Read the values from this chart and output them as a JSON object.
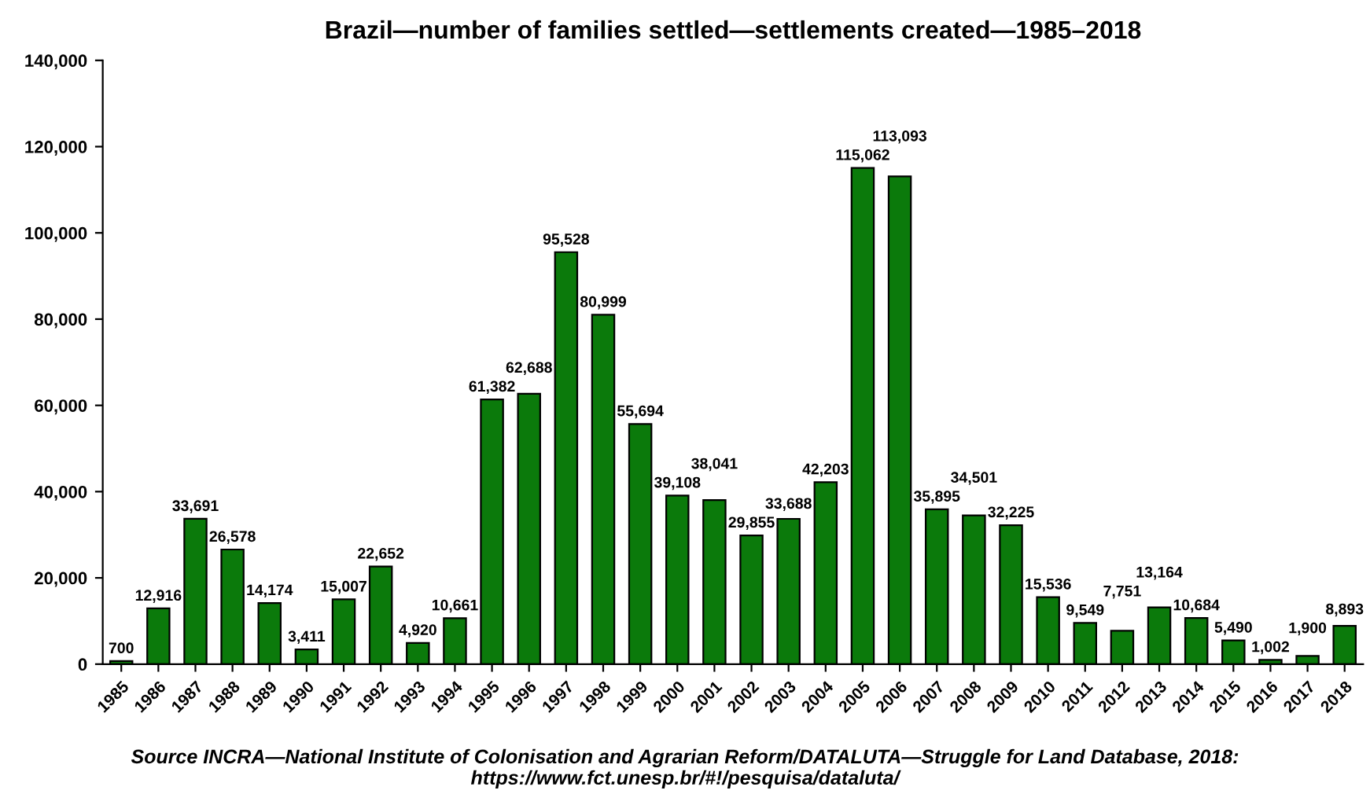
{
  "chart_data": {
    "type": "bar",
    "title": "Brazil—number of families settled—settlements created—1985–2018",
    "categories": [
      "1985",
      "1986",
      "1987",
      "1988",
      "1989",
      "1990",
      "1991",
      "1992",
      "1993",
      "1994",
      "1995",
      "1996",
      "1997",
      "1998",
      "1999",
      "2000",
      "2001",
      "2002",
      "2003",
      "2004",
      "2005",
      "2006",
      "2007",
      "2008",
      "2009",
      "2010",
      "2011",
      "2012",
      "2013",
      "2014",
      "2015",
      "2016",
      "2017",
      "2018"
    ],
    "values": [
      700,
      12916,
      33691,
      26578,
      14174,
      3411,
      15007,
      22652,
      4920,
      10661,
      61382,
      62688,
      95528,
      80999,
      55694,
      39108,
      38041,
      29855,
      33688,
      42203,
      115062,
      113093,
      35895,
      34501,
      32225,
      15536,
      9549,
      7751,
      13164,
      10684,
      5490,
      1002,
      1900,
      8893
    ],
    "value_labels": [
      "700",
      "12,916",
      "33,691",
      "26,578",
      "14,174",
      "3,411",
      "15,007",
      "22,652",
      "4,920",
      "10,661",
      "61,382",
      "62,688",
      "95,528",
      "80,999",
      "55,694",
      "39,108",
      "38,041",
      "29,855",
      "33,688",
      "42,203",
      "115,062",
      "113,093",
      "35,895",
      "34,501",
      "32,225",
      "15,536",
      "9,549",
      "7,751",
      "13,164",
      "10,684",
      "5,490",
      "1,002",
      "1,900",
      "8,893"
    ],
    "color": "#0b7a0b",
    "ylim": [
      0,
      140000
    ],
    "yticks": [
      {
        "value": 0,
        "label": "0"
      },
      {
        "value": 20000,
        "label": "20,000"
      },
      {
        "value": 40000,
        "label": "40,000"
      },
      {
        "value": 60000,
        "label": "60,000"
      },
      {
        "value": 80000,
        "label": "80,000"
      },
      {
        "value": 100000,
        "label": "100,000"
      },
      {
        "value": 120000,
        "label": "120,000"
      },
      {
        "value": 140000,
        "label": "140,000"
      }
    ],
    "grid": false,
    "legend": false,
    "annotations": [
      "Source INCRA—National Institute of Colonisation and Agrarian Reform/DATALUTA—Struggle for Land Database, 2018:\nhttps://www.fct.unesp.br/#!/pesquisa/dataluta/"
    ]
  }
}
